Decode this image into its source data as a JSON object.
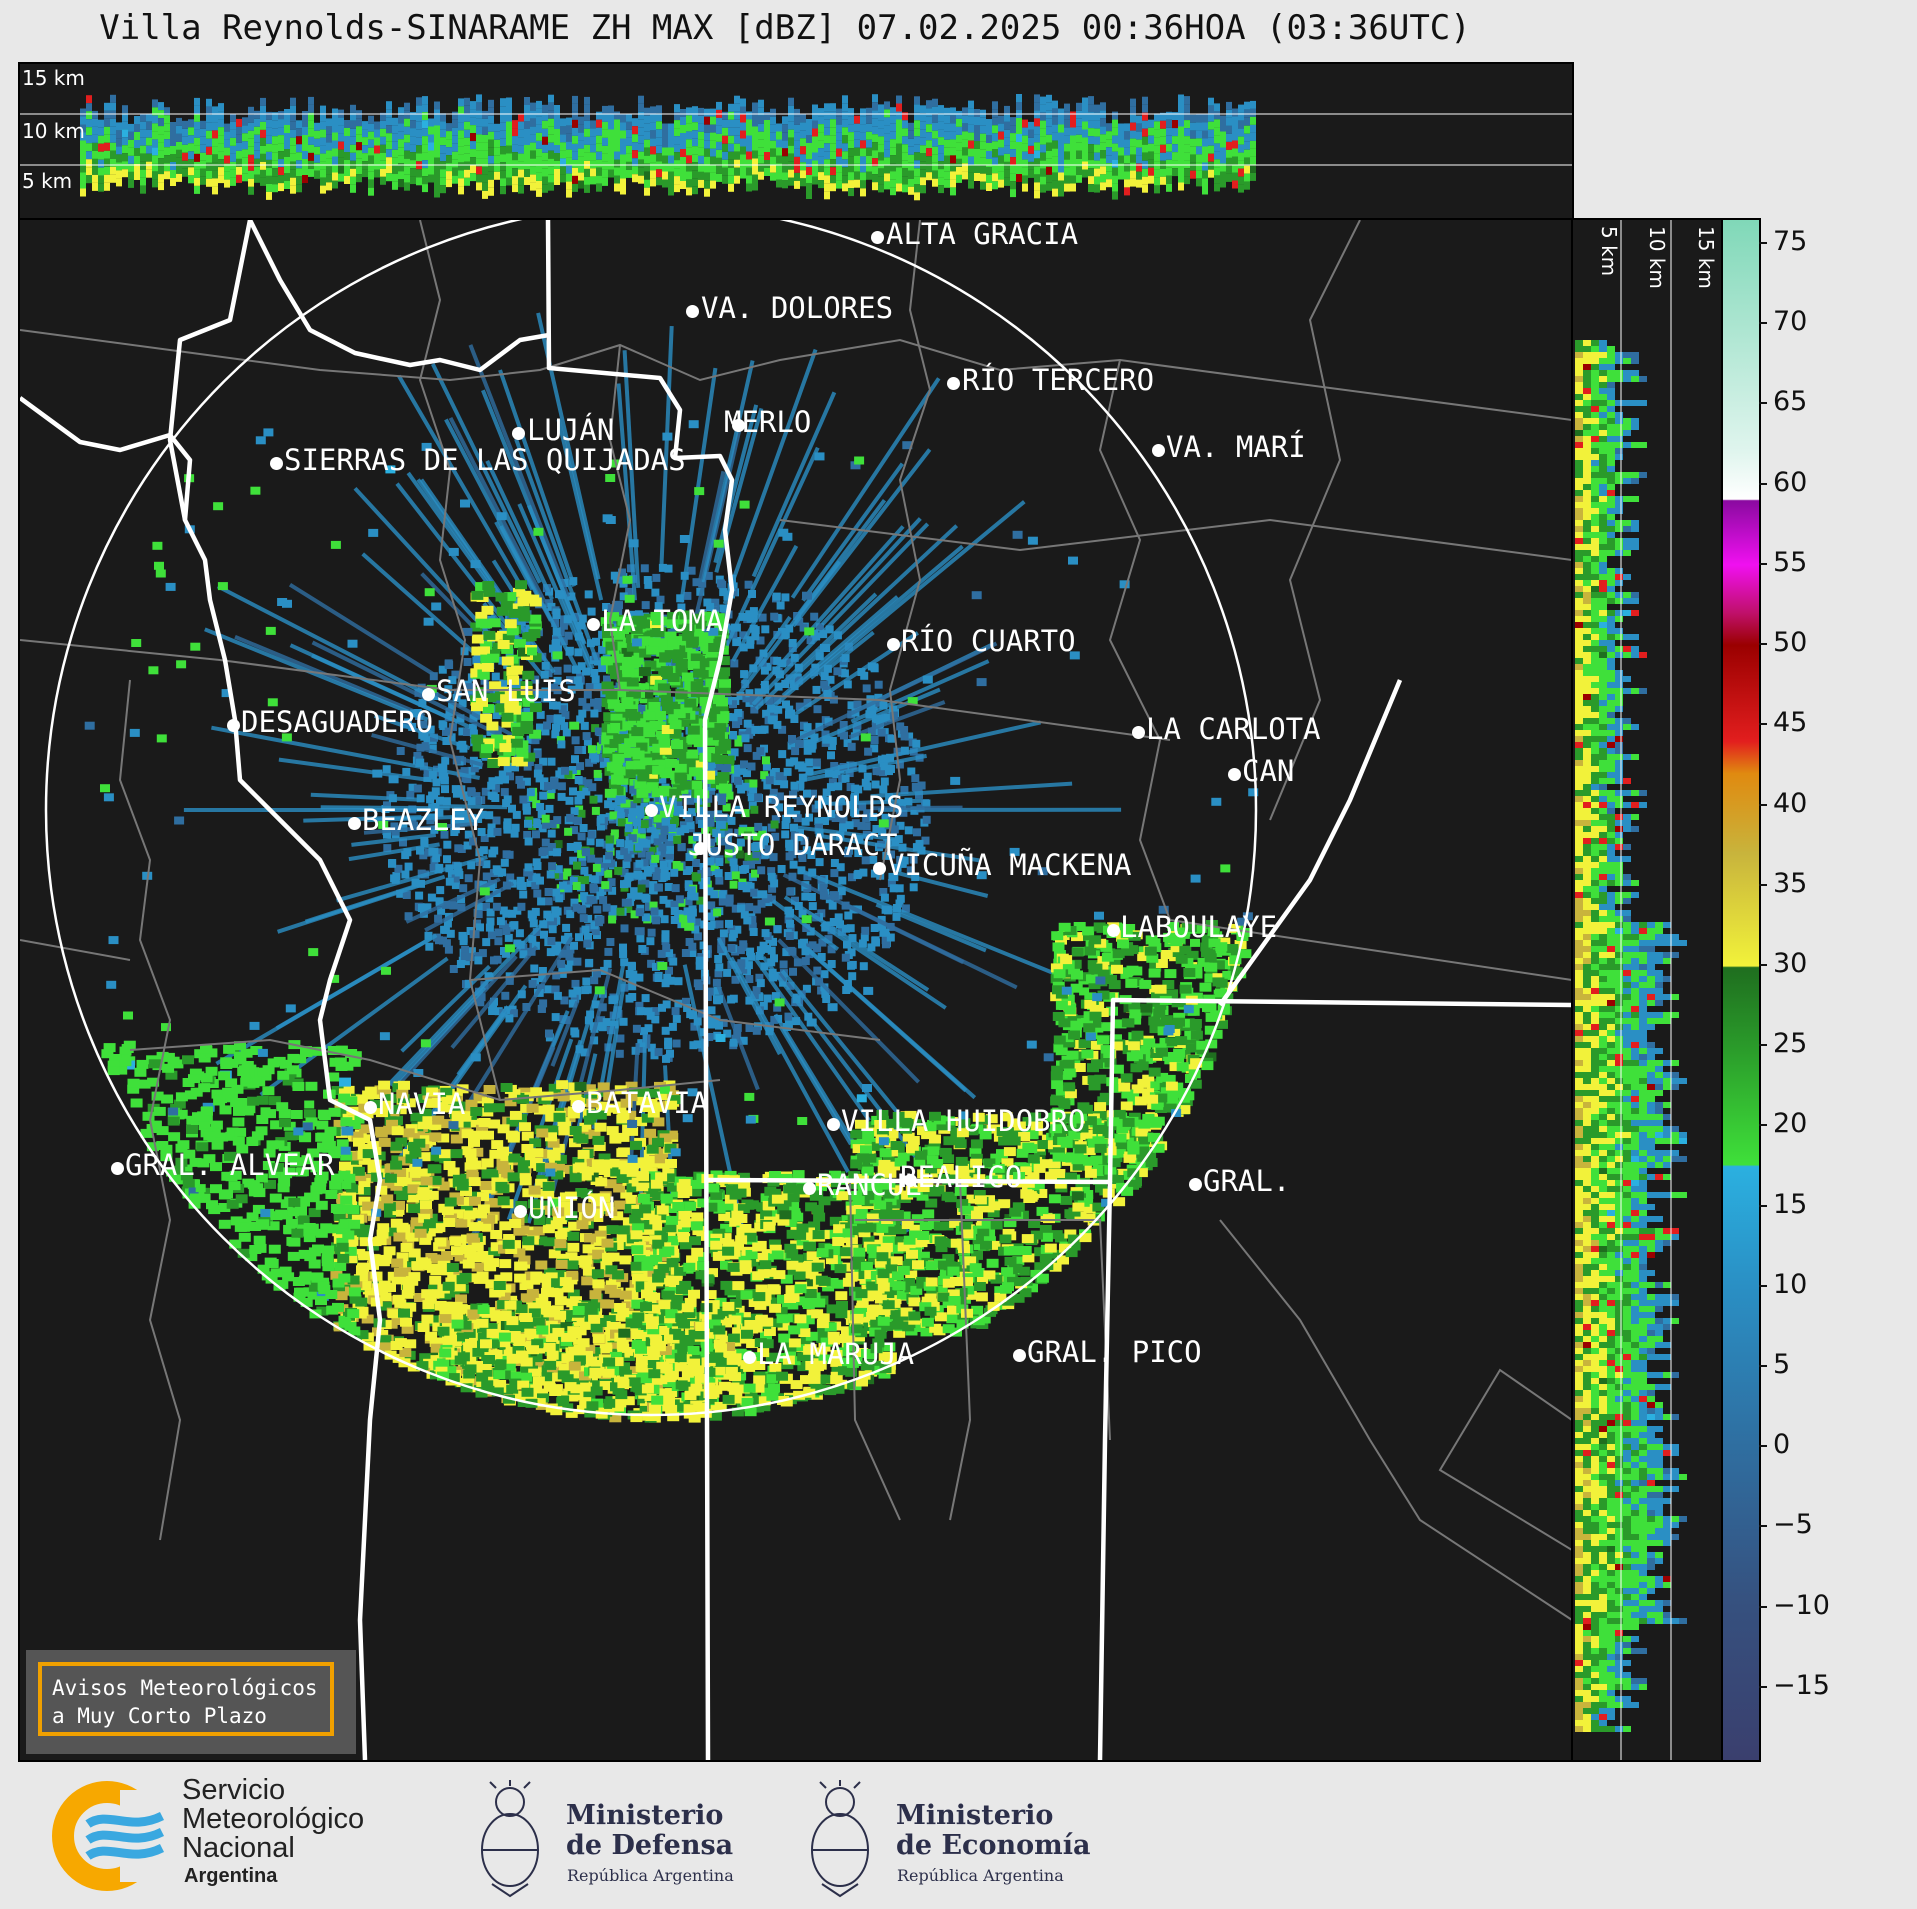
{
  "title": "Villa Reynolds-SINARAME ZH MAX [dBZ] 07.02.2025 00:36HOA (03:36UTC)",
  "top_altitudes": [
    "15 km",
    "10 km",
    "5 km"
  ],
  "side_altitudes": [
    "5 km",
    "10 km",
    "15 km"
  ],
  "colorbar": {
    "unit": "dBZ",
    "ticks": [
      "75",
      "70",
      "65",
      "60",
      "55",
      "50",
      "45",
      "40",
      "35",
      "30",
      "25",
      "20",
      "15",
      "10",
      "5",
      "0",
      "−5",
      "−10",
      "−15"
    ],
    "range": [
      -19.5,
      76.5
    ],
    "stops": [
      {
        "v": -19.5,
        "c": "#3a3f6e"
      },
      {
        "v": -10,
        "c": "#36507e"
      },
      {
        "v": 0,
        "c": "#2f6ea0"
      },
      {
        "v": 10,
        "c": "#2a8fc4"
      },
      {
        "v": 17.5,
        "c": "#2bb0e0"
      },
      {
        "v": 17.6,
        "c": "#3fe03a"
      },
      {
        "v": 25,
        "c": "#2a9a2a"
      },
      {
        "v": 29.9,
        "c": "#1f6e1f"
      },
      {
        "v": 30,
        "c": "#f2f23a"
      },
      {
        "v": 37,
        "c": "#c8b43c"
      },
      {
        "v": 42,
        "c": "#e08a10"
      },
      {
        "v": 44,
        "c": "#e21e1e"
      },
      {
        "v": 50,
        "c": "#9a0000"
      },
      {
        "v": 52,
        "c": "#c0106a"
      },
      {
        "v": 55,
        "c": "#f010f0"
      },
      {
        "v": 59,
        "c": "#8a0aa0"
      },
      {
        "v": 59.1,
        "c": "#ffffff"
      },
      {
        "v": 62,
        "c": "#e0f5ee"
      },
      {
        "v": 76.5,
        "c": "#80d8b8"
      }
    ]
  },
  "cities": [
    {
      "name": "ALTA GRACIA",
      "dot": [
        857,
        17
      ],
      "label": [
        866,
        0
      ]
    },
    {
      "name": "VA. DOLORES",
      "dot": [
        672,
        91
      ],
      "label": [
        681,
        74
      ]
    },
    {
      "name": "RÍO TERCERO",
      "dot": [
        933,
        163
      ],
      "label": [
        942,
        146
      ]
    },
    {
      "name": "LUJÁN",
      "dot": [
        498,
        213
      ],
      "label": [
        507,
        196
      ]
    },
    {
      "name": "MERLO",
      "dot": [
        718,
        205
      ],
      "label": [
        704,
        188
      ]
    },
    {
      "name": "SIERRAS DE LAS QUIJADAS",
      "dot": [
        256,
        243
      ],
      "label": [
        264,
        226
      ]
    },
    {
      "name": "VA. MARÍ",
      "dot": [
        1138,
        230
      ],
      "label": [
        1146,
        213
      ]
    },
    {
      "name": "LA TOMA",
      "dot": [
        573,
        404
      ],
      "label": [
        581,
        387
      ]
    },
    {
      "name": "RÍO CUARTO",
      "dot": [
        873,
        424
      ],
      "label": [
        881,
        407
      ]
    },
    {
      "name": "SAN LUIS",
      "dot": [
        408,
        474
      ],
      "label": [
        416,
        457
      ]
    },
    {
      "name": "DESAGUADERO",
      "dot": [
        213,
        505
      ],
      "label": [
        221,
        488
      ]
    },
    {
      "name": "LA CARLOTA",
      "dot": [
        1118,
        512
      ],
      "label": [
        1126,
        495
      ]
    },
    {
      "name": "CAN",
      "dot": [
        1214,
        554
      ],
      "label": [
        1222,
        537
      ]
    },
    {
      "name": "VILLA REYNOLDS",
      "dot": [
        631,
        590
      ],
      "label": [
        639,
        573
      ]
    },
    {
      "name": "BEAZLEY",
      "dot": [
        334,
        603
      ],
      "label": [
        342,
        586
      ]
    },
    {
      "name": "JUSTO DARACT",
      "dot": [
        680,
        628
      ],
      "label": [
        668,
        611
      ]
    },
    {
      "name": "VICUÑA MACKENA",
      "dot": [
        859,
        648
      ],
      "label": [
        867,
        631
      ]
    },
    {
      "name": "LABOULAYE",
      "dot": [
        1093,
        710
      ],
      "label": [
        1100,
        693
      ]
    },
    {
      "name": "NAVIA",
      "dot": [
        350,
        887
      ],
      "label": [
        358,
        870
      ]
    },
    {
      "name": "BATAVIA",
      "dot": [
        558,
        886
      ],
      "label": [
        566,
        869
      ]
    },
    {
      "name": "VILLA HUIDOBRO",
      "dot": [
        813,
        904
      ],
      "label": [
        821,
        887
      ]
    },
    {
      "name": "GRAL. ALVEAR",
      "dot": [
        97,
        948
      ],
      "label": [
        105,
        931
      ]
    },
    {
      "name": "RANCUL",
      "dot": [
        789,
        968
      ],
      "label": [
        797,
        951
      ]
    },
    {
      "name": "REALICO",
      "dot": [
        890,
        960
      ],
      "label": [
        880,
        943
      ]
    },
    {
      "name": "GRAL.",
      "dot": [
        1175,
        964
      ],
      "label": [
        1183,
        947
      ]
    },
    {
      "name": "UNIÓN",
      "dot": [
        500,
        991
      ],
      "label": [
        508,
        974
      ]
    },
    {
      "name": "LA MARUJA",
      "dot": [
        729,
        1137
      ],
      "label": [
        737,
        1120
      ]
    },
    {
      "name": "GRAL. PICO",
      "dot": [
        999,
        1135
      ],
      "label": [
        1007,
        1118
      ]
    }
  ],
  "avisos": {
    "line1": "Avisos Meteorológicos",
    "line2": "a Muy Corto Plazo"
  },
  "footer": {
    "smn": {
      "l1": "Servicio",
      "l2": "Meteorológico",
      "l3": "Nacional",
      "l4": "Argentina",
      "ring_color": "#f7a800",
      "wave_color": "#3aa8e0"
    },
    "defensa": {
      "l1": "Ministerio",
      "l2": "de Defensa",
      "l3": "República Argentina"
    },
    "economia": {
      "l1": "Ministerio",
      "l2": "de Economía",
      "l3": "República Argentina"
    }
  }
}
